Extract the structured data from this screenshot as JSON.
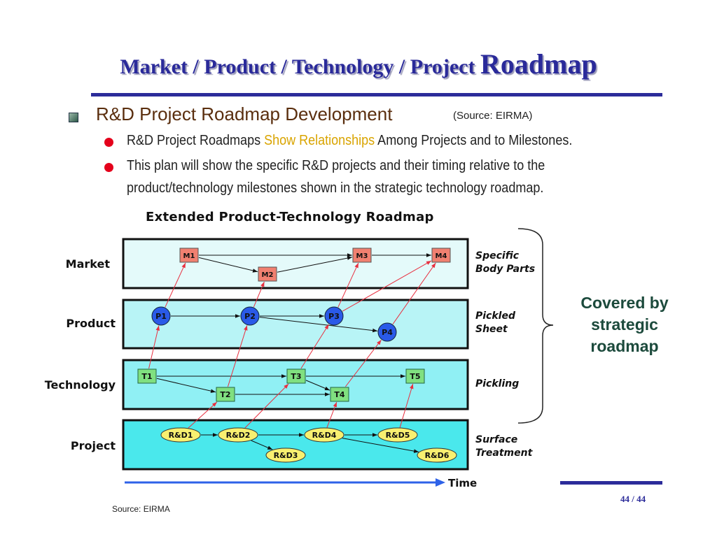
{
  "title": {
    "part1": "Market / Product / Technology / Project ",
    "part2": "Roadmap"
  },
  "heading": "R&D Project Roadmap Development",
  "source_top": "(Source: EIRMA)",
  "bullets": [
    {
      "pre": "R&D Project Roadmaps ",
      "highlight": "Show Relationships",
      "post": " Among Projects and to Milestones."
    },
    {
      "line1": "This plan will show the specific R&D projects and their timing relative to the",
      "line2": "product/technology milestones shown in the strategic technology roadmap."
    }
  ],
  "colors": {
    "title": "#2a2a9a",
    "heading": "#5a2e0e",
    "highlight": "#d9a400",
    "bullet_dot": "#e4001b",
    "milestone": "#f08070",
    "product": "#2a5ae8",
    "technology": "#80e080",
    "project": "#f8f070",
    "dependency": "#111111",
    "link": "#e83040"
  },
  "diagram": {
    "title": "Extended Product-Technology Roadmap",
    "rows": [
      {
        "label": "Market",
        "desc1": "Specific",
        "desc2": "Body Parts"
      },
      {
        "label": "Product",
        "desc1": "Pickled",
        "desc2": "Sheet"
      },
      {
        "label": "Technology",
        "desc1": "Pickling",
        "desc2": ""
      },
      {
        "label": "Project",
        "desc1": "Surface",
        "desc2": "Treatment"
      }
    ],
    "nodes": [
      "M1",
      "M2",
      "M3",
      "M4",
      "P1",
      "P2",
      "P3",
      "P4",
      "T1",
      "T2",
      "T3",
      "T4",
      "T5",
      "R&D1",
      "R&D2",
      "R&D3",
      "R&D4",
      "R&D5",
      "R&D6"
    ],
    "dependencies": [
      [
        "M1",
        "M3"
      ],
      [
        "M1",
        "M2"
      ],
      [
        "M2",
        "M3"
      ],
      [
        "M3",
        "M4"
      ],
      [
        "P1",
        "P2"
      ],
      [
        "P2",
        "P3"
      ],
      [
        "P2",
        "P4"
      ],
      [
        "T1",
        "T3"
      ],
      [
        "T1",
        "T2"
      ],
      [
        "T2",
        "T4"
      ],
      [
        "T3",
        "T4"
      ],
      [
        "T3",
        "T5"
      ],
      [
        "R&D1",
        "R&D2"
      ],
      [
        "R&D2",
        "R&D4"
      ],
      [
        "R&D2",
        "R&D3"
      ],
      [
        "R&D4",
        "R&D5"
      ],
      [
        "R&D4",
        "R&D6"
      ]
    ],
    "links": [
      [
        "T1",
        "P1"
      ],
      [
        "P1",
        "M1"
      ],
      [
        "T2",
        "P2"
      ],
      [
        "P2",
        "M2"
      ],
      [
        "T3",
        "P3"
      ],
      [
        "P3",
        "M3"
      ],
      [
        "P3",
        "M4"
      ],
      [
        "T4",
        "P4"
      ],
      [
        "P4",
        "M4"
      ],
      [
        "R&D1",
        "T2"
      ],
      [
        "R&D2",
        "T3"
      ],
      [
        "R&D4",
        "T4"
      ],
      [
        "R&D5",
        "T5"
      ]
    ],
    "time_label": "Time",
    "brace_label": "Covered by strategic roadmap"
  },
  "covered": {
    "l1": "Covered by",
    "l2": "strategic",
    "l3": "roadmap"
  },
  "page_number": "44 / 44",
  "source_bottom": "Source:  EIRMA"
}
